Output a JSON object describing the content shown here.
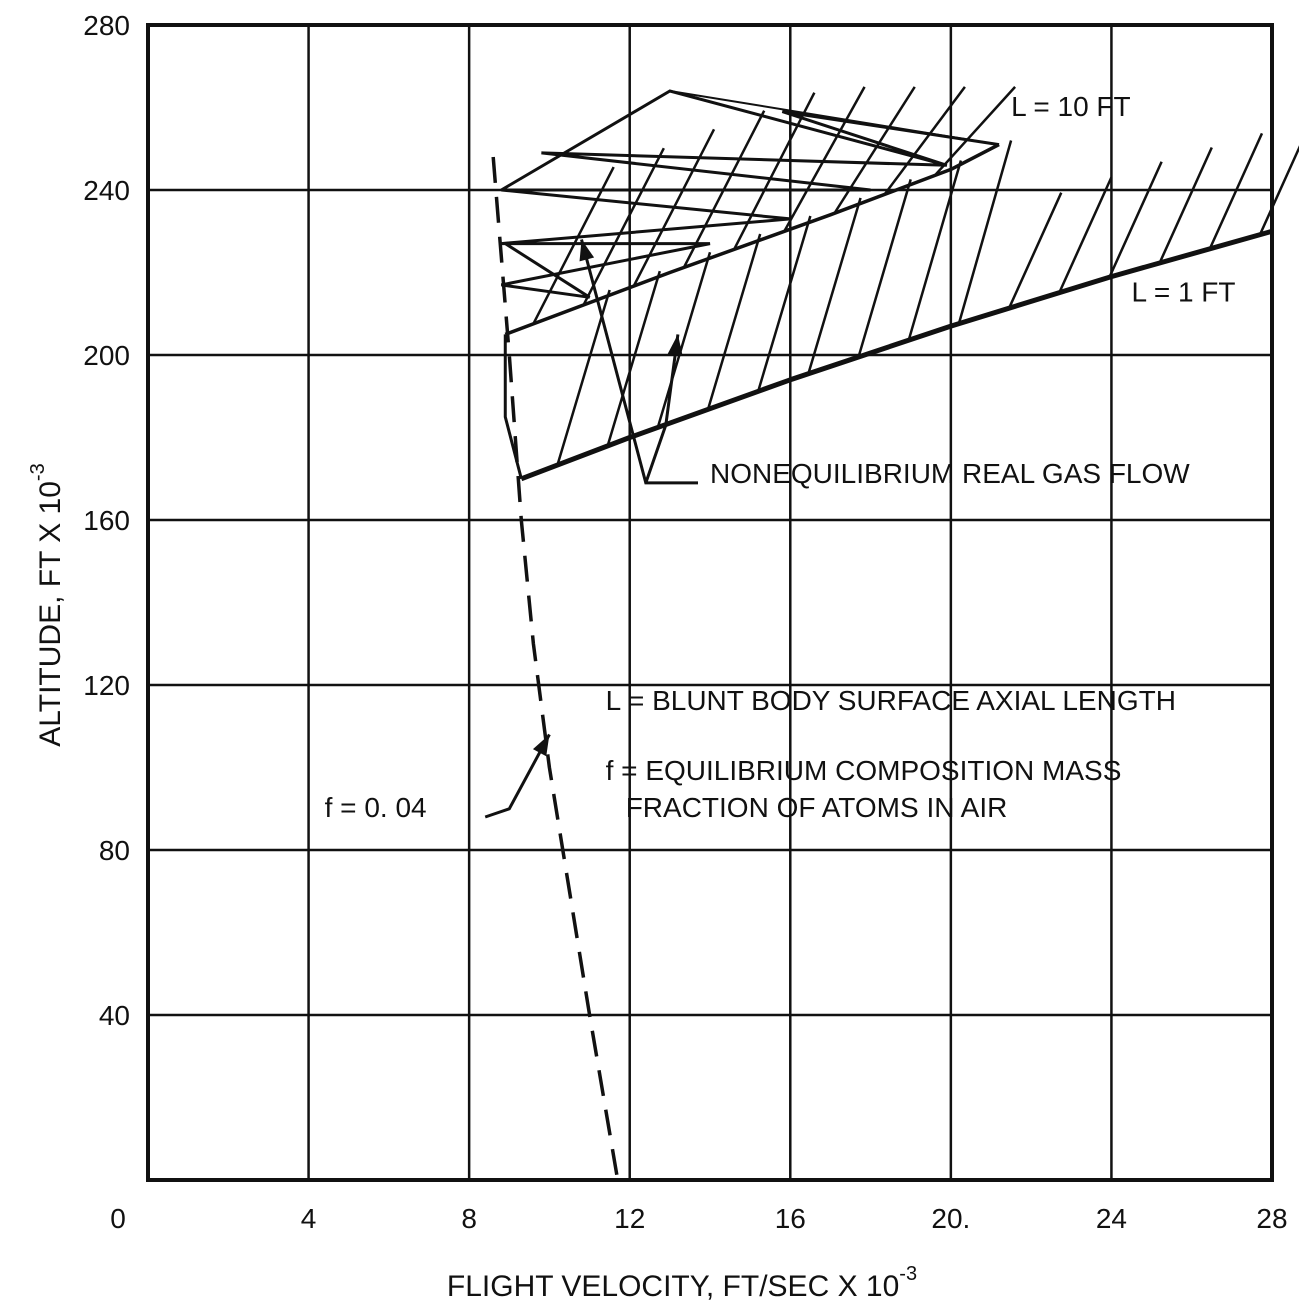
{
  "chart_data": {
    "type": "line",
    "xlabel": "FLIGHT VELOCITY, FT/SEC X 10",
    "xlabel_exponent": "-3",
    "ylabel": "ALTITUDE, FT X 10",
    "ylabel_exponent": "-3",
    "xlim": [
      0,
      28
    ],
    "ylim": [
      0,
      280
    ],
    "x_ticks": [
      0,
      4,
      8,
      12,
      16,
      20,
      24,
      28
    ],
    "x_tick_labels": [
      "0",
      "4",
      "8",
      "12",
      "16",
      "20.",
      "24",
      "28"
    ],
    "y_ticks": [
      40,
      80,
      120,
      160,
      200,
      240,
      280
    ],
    "y_tick_labels": [
      "40",
      "80",
      "120",
      "160",
      "200",
      "240",
      "280"
    ],
    "grid": true,
    "series": [
      {
        "name": "L = 10 FT",
        "style": "solid",
        "points": [
          [
            8.9,
            205
          ],
          [
            13.0,
            220
          ],
          [
            17.0,
            234
          ],
          [
            20.0,
            245
          ],
          [
            21.2,
            251
          ]
        ]
      },
      {
        "name": "L = 1 FT",
        "style": "solid-bold",
        "points": [
          [
            9.3,
            170
          ],
          [
            12.0,
            180
          ],
          [
            16.0,
            194
          ],
          [
            20.0,
            207
          ],
          [
            24.0,
            219
          ],
          [
            28.0,
            230
          ]
        ]
      },
      {
        "name": "f = 0.04",
        "style": "dashed",
        "points": [
          [
            8.6,
            248
          ],
          [
            9.0,
            200
          ],
          [
            9.3,
            160
          ],
          [
            9.6,
            130
          ],
          [
            10.0,
            100
          ],
          [
            10.5,
            70
          ],
          [
            11.0,
            40
          ],
          [
            11.7,
            0
          ]
        ]
      }
    ],
    "annotations": [
      {
        "text": "L = 10 FT",
        "x": 21.5,
        "y": 258
      },
      {
        "text": "L = 1 FT",
        "x": 24.5,
        "y": 213
      },
      {
        "text": "NONEQUILIBRIUM REAL GAS FLOW",
        "x": 14.0,
        "y": 169
      },
      {
        "text": "L = BLUNT BODY SURFACE AXIAL LENGTH",
        "x": 11.4,
        "y": 114
      },
      {
        "text": "f = EQUILIBRIUM COMPOSITION MASS",
        "x": 11.4,
        "y": 97
      },
      {
        "text": "FRACTION OF ATOMS IN AIR",
        "x": 11.9,
        "y": 88
      },
      {
        "text": "f = 0. 04",
        "x": 4.4,
        "y": 88
      }
    ],
    "hatched_region": "NONEQUILIBRIUM REAL GAS FLOW"
  }
}
